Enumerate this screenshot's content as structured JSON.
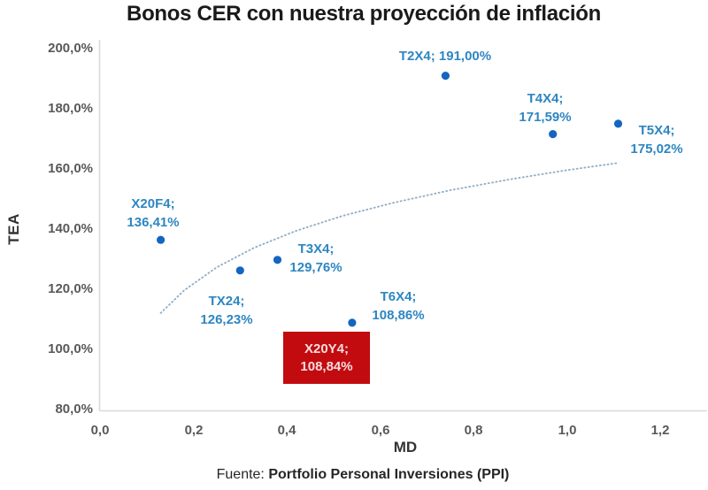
{
  "chart_data": {
    "type": "scatter",
    "title": "Bonos CER con nuestra proyección de inflación",
    "xlabel": "MD",
    "ylabel": "TEA",
    "xlim": [
      0.0,
      1.2
    ],
    "ylim": [
      80,
      200
    ],
    "grid": false,
    "legend": false,
    "x_ticks": [
      "0,0",
      "0,2",
      "0,4",
      "0,6",
      "0,8",
      "1,0",
      "1,2"
    ],
    "y_ticks": [
      "200,0%",
      "180,0%",
      "160,0%",
      "140,0%",
      "120,0%",
      "100,0%",
      "80,0%"
    ],
    "points": [
      {
        "name": "X20F4",
        "md": 0.13,
        "tea": 136.41,
        "label": [
          "X20F4;",
          "136,41%"
        ]
      },
      {
        "name": "TX24",
        "md": 0.3,
        "tea": 126.23,
        "label": [
          "TX24;",
          "126,23%"
        ]
      },
      {
        "name": "T3X4",
        "md": 0.38,
        "tea": 129.76,
        "label": [
          "T3X4;",
          "129,76%"
        ]
      },
      {
        "name": "T6X4",
        "md": 0.54,
        "tea": 108.86,
        "label": [
          "T6X4;",
          "108,86%"
        ]
      },
      {
        "name": "X20Y4",
        "md": 0.53,
        "tea": 108.84,
        "label": [
          "X20Y4;",
          "108,84%"
        ],
        "highlighted": true,
        "marker_hidden": true
      },
      {
        "name": "T2X4",
        "md": 0.74,
        "tea": 191.0,
        "label": [
          "T2X4; 191,00%"
        ]
      },
      {
        "name": "T4X4",
        "md": 0.97,
        "tea": 171.59,
        "label": [
          "T4X4;",
          "171,59%"
        ]
      },
      {
        "name": "T5X4",
        "md": 1.11,
        "tea": 175.02,
        "label": [
          "T5X4;",
          "175,02%"
        ]
      }
    ],
    "trendline": {
      "style": "dotted",
      "fit": "logarithmic",
      "md": [
        0.13,
        0.18,
        0.25,
        0.33,
        0.42,
        0.52,
        0.63,
        0.75,
        0.88,
        1.0,
        1.11
      ],
      "tea": [
        112.1,
        119.6,
        127.3,
        133.8,
        139.4,
        144.4,
        148.8,
        152.9,
        156.6,
        159.6,
        162.0
      ]
    },
    "colors": {
      "point": "#1565c0",
      "point_label": "#2e86c1",
      "trend": "#92afc7",
      "highlight_bg": "#c20b0f",
      "highlight_text": "#f5dede",
      "axis_line": "#d9d9d9",
      "axis_text": "#595959",
      "title_text": "#1a1a1a"
    }
  },
  "source": {
    "prefix": "Fuente: ",
    "name": "Portfolio Personal Inversiones (PPI)"
  }
}
